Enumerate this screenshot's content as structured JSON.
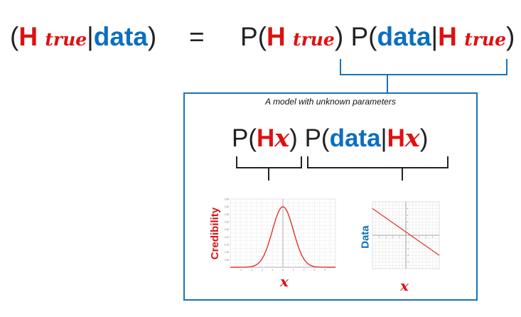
{
  "equation": {
    "open_paren": "(",
    "h_letter": "H",
    "true_sub": "true",
    "bar": "|",
    "data_word": "data",
    "close_paren": ")",
    "equals": "=",
    "p_letter": "P"
  },
  "model_box": {
    "caption": "A model with unknown parameters",
    "x_symbol": "x"
  },
  "chart_left": {
    "ylabel": "Credibility",
    "xlabel": "x"
  },
  "chart_right": {
    "ylabel": "Data",
    "xlabel": "x"
  },
  "chart_data": [
    {
      "type": "line",
      "title": "",
      "xlabel": "x",
      "ylabel": "Credibility",
      "xlim": [
        -5,
        5
      ],
      "ylim": [
        0,
        0.45
      ],
      "series": [
        {
          "x": [
            -5,
            -4,
            -3,
            -2.5,
            -2,
            -1.5,
            -1,
            -0.5,
            0,
            0.5,
            1,
            1.5,
            2,
            2.5,
            3,
            4,
            5
          ],
          "values": [
            0.0,
            0.0001,
            0.0044,
            0.0175,
            0.054,
            0.1295,
            0.242,
            0.352,
            0.399,
            0.352,
            0.242,
            0.1295,
            0.054,
            0.0175,
            0.0044,
            0.0001,
            0.0
          ],
          "color": "#e53030"
        }
      ],
      "grid": true
    },
    {
      "type": "line",
      "title": "",
      "xlabel": "x",
      "ylabel": "Data",
      "xlim": [
        -5,
        5
      ],
      "ylim": [
        -5,
        5
      ],
      "series": [
        {
          "x": [
            -5,
            5
          ],
          "values": [
            4,
            -3
          ],
          "color": "#e53030"
        }
      ],
      "grid": true
    }
  ]
}
